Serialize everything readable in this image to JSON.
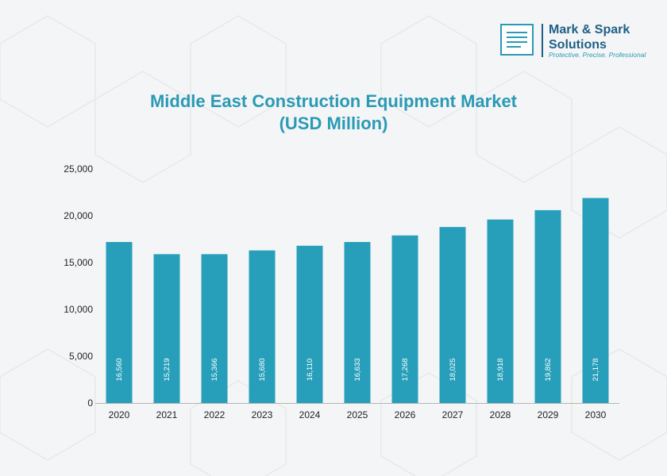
{
  "brand": {
    "name_line1": "Mark & Spark",
    "name_line2": "Solutions",
    "tagline": "Protective. Precise. Professional"
  },
  "colors": {
    "bar": "#279fba",
    "title": "#2a9ab5",
    "brand": "#1e5f86",
    "axis": "#b5b5b5",
    "text": "#222222",
    "bar_label": "#ffffff"
  },
  "chart_data": {
    "type": "bar",
    "title_line1": "Middle East Construction Equipment Market",
    "title_line2": "(USD Million)",
    "categories": [
      "2020",
      "2021",
      "2022",
      "2023",
      "2024",
      "2025",
      "2026",
      "2027",
      "2028",
      "2029",
      "2030"
    ],
    "values": [
      16560,
      15219,
      15366,
      15680,
      16110,
      16633,
      17268,
      18025,
      18918,
      19862,
      21178
    ],
    "value_labels": [
      "16,560",
      "15,219",
      "15,366",
      "15,680",
      "16,110",
      "16,633",
      "17,268",
      "18,025",
      "18,918",
      "19,862",
      "21,178"
    ],
    "bar_heights_estimated": [
      17200,
      15900,
      15900,
      16300,
      16800,
      17200,
      17900,
      18800,
      19600,
      20600,
      21900
    ],
    "yticks": [
      0,
      5000,
      10000,
      15000,
      20000,
      25000
    ],
    "ytick_labels": [
      "0",
      "5,000",
      "10,000",
      "15,000",
      "20,000",
      "25,000"
    ],
    "ylim": [
      0,
      25000
    ],
    "xlabel": "",
    "ylabel": "",
    "grid": false,
    "legend": "none"
  }
}
